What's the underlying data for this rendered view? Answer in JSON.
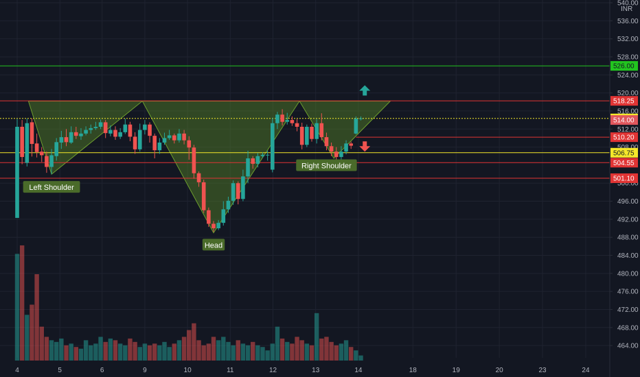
{
  "chart_data": {
    "type": "candlestick",
    "currency": "INR",
    "ylim": [
      462.5,
      540.0
    ],
    "y_ticks": [
      "540.00",
      "536.00",
      "532.00",
      "528.00",
      "524.00",
      "520.00",
      "516.00",
      "512.00",
      "508.00",
      "500.00",
      "496.00",
      "492.00",
      "488.00",
      "484.00",
      "480.00",
      "476.00",
      "472.00",
      "468.00",
      "464.00"
    ],
    "x_labels": [
      "4",
      "5",
      "6",
      "9",
      "10",
      "11",
      "12",
      "13",
      "14",
      "18",
      "19",
      "20",
      "23",
      "24"
    ],
    "candles": [
      [
        492.3,
        512.5,
        514.2,
        511.5
      ],
      [
        512.5,
        505.8,
        514.0,
        504.2
      ],
      [
        504.5,
        513.3,
        514.3,
        503.7
      ],
      [
        513.5,
        508.7,
        514.3,
        505.9
      ],
      [
        508.8,
        506.9,
        511.0,
        505.7
      ],
      [
        507.0,
        506.2,
        508.0,
        504.7
      ],
      [
        506.0,
        503.6,
        507.0,
        502.3
      ],
      [
        503.6,
        506.2,
        507.6,
        502.0
      ],
      [
        506.0,
        509.1,
        510.0,
        505.0
      ],
      [
        509.0,
        510.2,
        511.6,
        507.6
      ],
      [
        510.2,
        509.1,
        512.0,
        508.2
      ],
      [
        509.0,
        511.3,
        512.6,
        508.7
      ],
      [
        511.3,
        510.5,
        512.5,
        509.8
      ],
      [
        510.4,
        511.0,
        512.2,
        509.6
      ],
      [
        511.0,
        511.8,
        512.6,
        510.6
      ],
      [
        511.8,
        512.2,
        513.0,
        511.0
      ],
      [
        512.2,
        512.5,
        513.6,
        511.8
      ],
      [
        512.5,
        513.5,
        514.1,
        512.0
      ],
      [
        513.5,
        511.1,
        514.0,
        510.0
      ],
      [
        511.0,
        511.8,
        512.8,
        510.4
      ],
      [
        511.8,
        510.3,
        512.6,
        509.6
      ],
      [
        510.3,
        511.3,
        512.2,
        509.8
      ],
      [
        511.3,
        513.0,
        514.3,
        510.9
      ],
      [
        513.0,
        510.3,
        513.6,
        509.3
      ],
      [
        510.3,
        507.5,
        511.3,
        506.5
      ],
      [
        507.5,
        511.8,
        513.2,
        507.0
      ],
      [
        511.8,
        513.0,
        514.0,
        510.8
      ],
      [
        513.0,
        510.5,
        513.5,
        509.0
      ],
      [
        510.5,
        507.3,
        511.0,
        505.5
      ],
      [
        507.3,
        509.0,
        510.0,
        506.5
      ],
      [
        509.0,
        510.0,
        511.2,
        508.5
      ],
      [
        510.0,
        510.6,
        511.8,
        509.6
      ],
      [
        510.6,
        509.5,
        511.0,
        508.8
      ],
      [
        509.5,
        511.0,
        512.0,
        509.0
      ],
      [
        511.0,
        509.5,
        511.8,
        508.6
      ],
      [
        509.5,
        507.9,
        510.4,
        505.2
      ],
      [
        507.9,
        502.2,
        508.5,
        501.0
      ],
      [
        502.2,
        500.2,
        502.6,
        499.2
      ],
      [
        500.2,
        494.0,
        500.8,
        493.4
      ],
      [
        494.0,
        491.0,
        494.6,
        490.3
      ],
      [
        491.0,
        490.0,
        491.6,
        489.2
      ],
      [
        490.0,
        491.2,
        491.8,
        489.6
      ],
      [
        491.2,
        494.2,
        496.0,
        490.6
      ],
      [
        494.2,
        496.1,
        497.0,
        493.4
      ],
      [
        496.1,
        500.0,
        500.6,
        495.2
      ],
      [
        500.0,
        496.5,
        500.4,
        495.3
      ],
      [
        496.5,
        501.5,
        503.0,
        496.0
      ],
      [
        501.5,
        505.5,
        507.2,
        500.0
      ],
      [
        505.5,
        504.3,
        506.0,
        503.2
      ],
      [
        504.3,
        506.0,
        506.7,
        503.5
      ],
      [
        506.0,
        506.3,
        506.8,
        505.6
      ],
      [
        506.3,
        506.3,
        507.2,
        505.0
      ],
      [
        503.0,
        513.3,
        514.5,
        502.4
      ],
      [
        513.3,
        515.2,
        515.8,
        512.0
      ],
      [
        515.2,
        513.6,
        516.4,
        512.8
      ],
      [
        513.6,
        514.0,
        515.6,
        513.0
      ],
      [
        514.0,
        513.3,
        514.8,
        512.7
      ],
      [
        513.3,
        512.5,
        514.2,
        511.5
      ],
      [
        512.5,
        508.5,
        513.4,
        507.5
      ],
      [
        508.5,
        512.5,
        513.0,
        508.0
      ],
      [
        512.5,
        509.8,
        513.2,
        509.2
      ],
      [
        509.8,
        513.3,
        514.2,
        508.8
      ],
      [
        513.3,
        510.2,
        515.5,
        509.5
      ],
      [
        510.2,
        508.2,
        511.2,
        507.3
      ],
      [
        508.2,
        507.0,
        509.0,
        506.0
      ],
      [
        507.0,
        505.8,
        508.0,
        504.8
      ],
      [
        505.8,
        507.0,
        508.2,
        505.2
      ],
      [
        507.0,
        508.8,
        509.5,
        506.4
      ],
      [
        508.8,
        508.3,
        509.2,
        507.6
      ],
      [
        511.0,
        514.3,
        514.8,
        510.8
      ],
      [
        514.3,
        514.35,
        514.8,
        513.9
      ]
    ],
    "volumes": [
      63,
      68,
      27,
      33,
      51,
      20,
      14,
      12,
      11,
      13,
      9,
      10,
      8,
      7,
      12,
      9,
      10,
      14,
      11,
      13,
      12,
      10,
      9,
      13,
      11,
      8,
      10,
      9,
      10,
      9,
      11,
      8,
      10,
      12,
      14,
      18,
      22,
      12,
      9,
      10,
      14,
      12,
      14,
      11,
      9,
      12,
      10,
      9,
      11,
      9,
      8,
      6,
      10,
      20,
      13,
      11,
      10,
      14,
      12,
      10,
      9,
      28,
      13,
      14,
      11,
      9,
      10,
      12,
      8,
      6,
      3
    ],
    "levels": [
      {
        "value": 526.0,
        "label": "526.00",
        "color": "#22c51f"
      },
      {
        "value": 518.25,
        "label": "518.25",
        "color": "#e03434"
      },
      {
        "value": 514.35,
        "label": "514.35",
        "color": "#f5e82a"
      },
      {
        "value": 510.2,
        "label": "510.20",
        "color": "#e03434"
      },
      {
        "value": 506.75,
        "label": "506.75",
        "color": "#f5e82a"
      },
      {
        "value": 504.55,
        "label": "504.55",
        "color": "#e03434"
      },
      {
        "value": 501.1,
        "label": "501.10",
        "color": "#e03434"
      }
    ],
    "price_badge": {
      "value": 514.0,
      "label": "514.00",
      "color": "#e0565c"
    },
    "annotations": [
      {
        "label": "Left Shoulder",
        "idx": 7,
        "value": 499.1
      },
      {
        "label": "Head",
        "idx": 40,
        "value": 486.3
      },
      {
        "label": "Right Shoulder",
        "idx": 63,
        "value": 503.9
      }
    ],
    "pattern_triangles": [
      [
        [
          2.3,
          518.2
        ],
        [
          7,
          502.0
        ],
        [
          25.5,
          518.2
        ]
      ],
      [
        [
          25.5,
          518.2
        ],
        [
          40,
          489.0
        ],
        [
          57.5,
          518.2
        ]
      ],
      [
        [
          57.5,
          518.2
        ],
        [
          64.5,
          505.5
        ],
        [
          76,
          518.2
        ]
      ]
    ],
    "colors": {
      "up": "#26a69a",
      "down": "#ef5350",
      "grid": "#1f2330",
      "text": "#b2b5be",
      "pattern": "#6d9e2e"
    }
  }
}
